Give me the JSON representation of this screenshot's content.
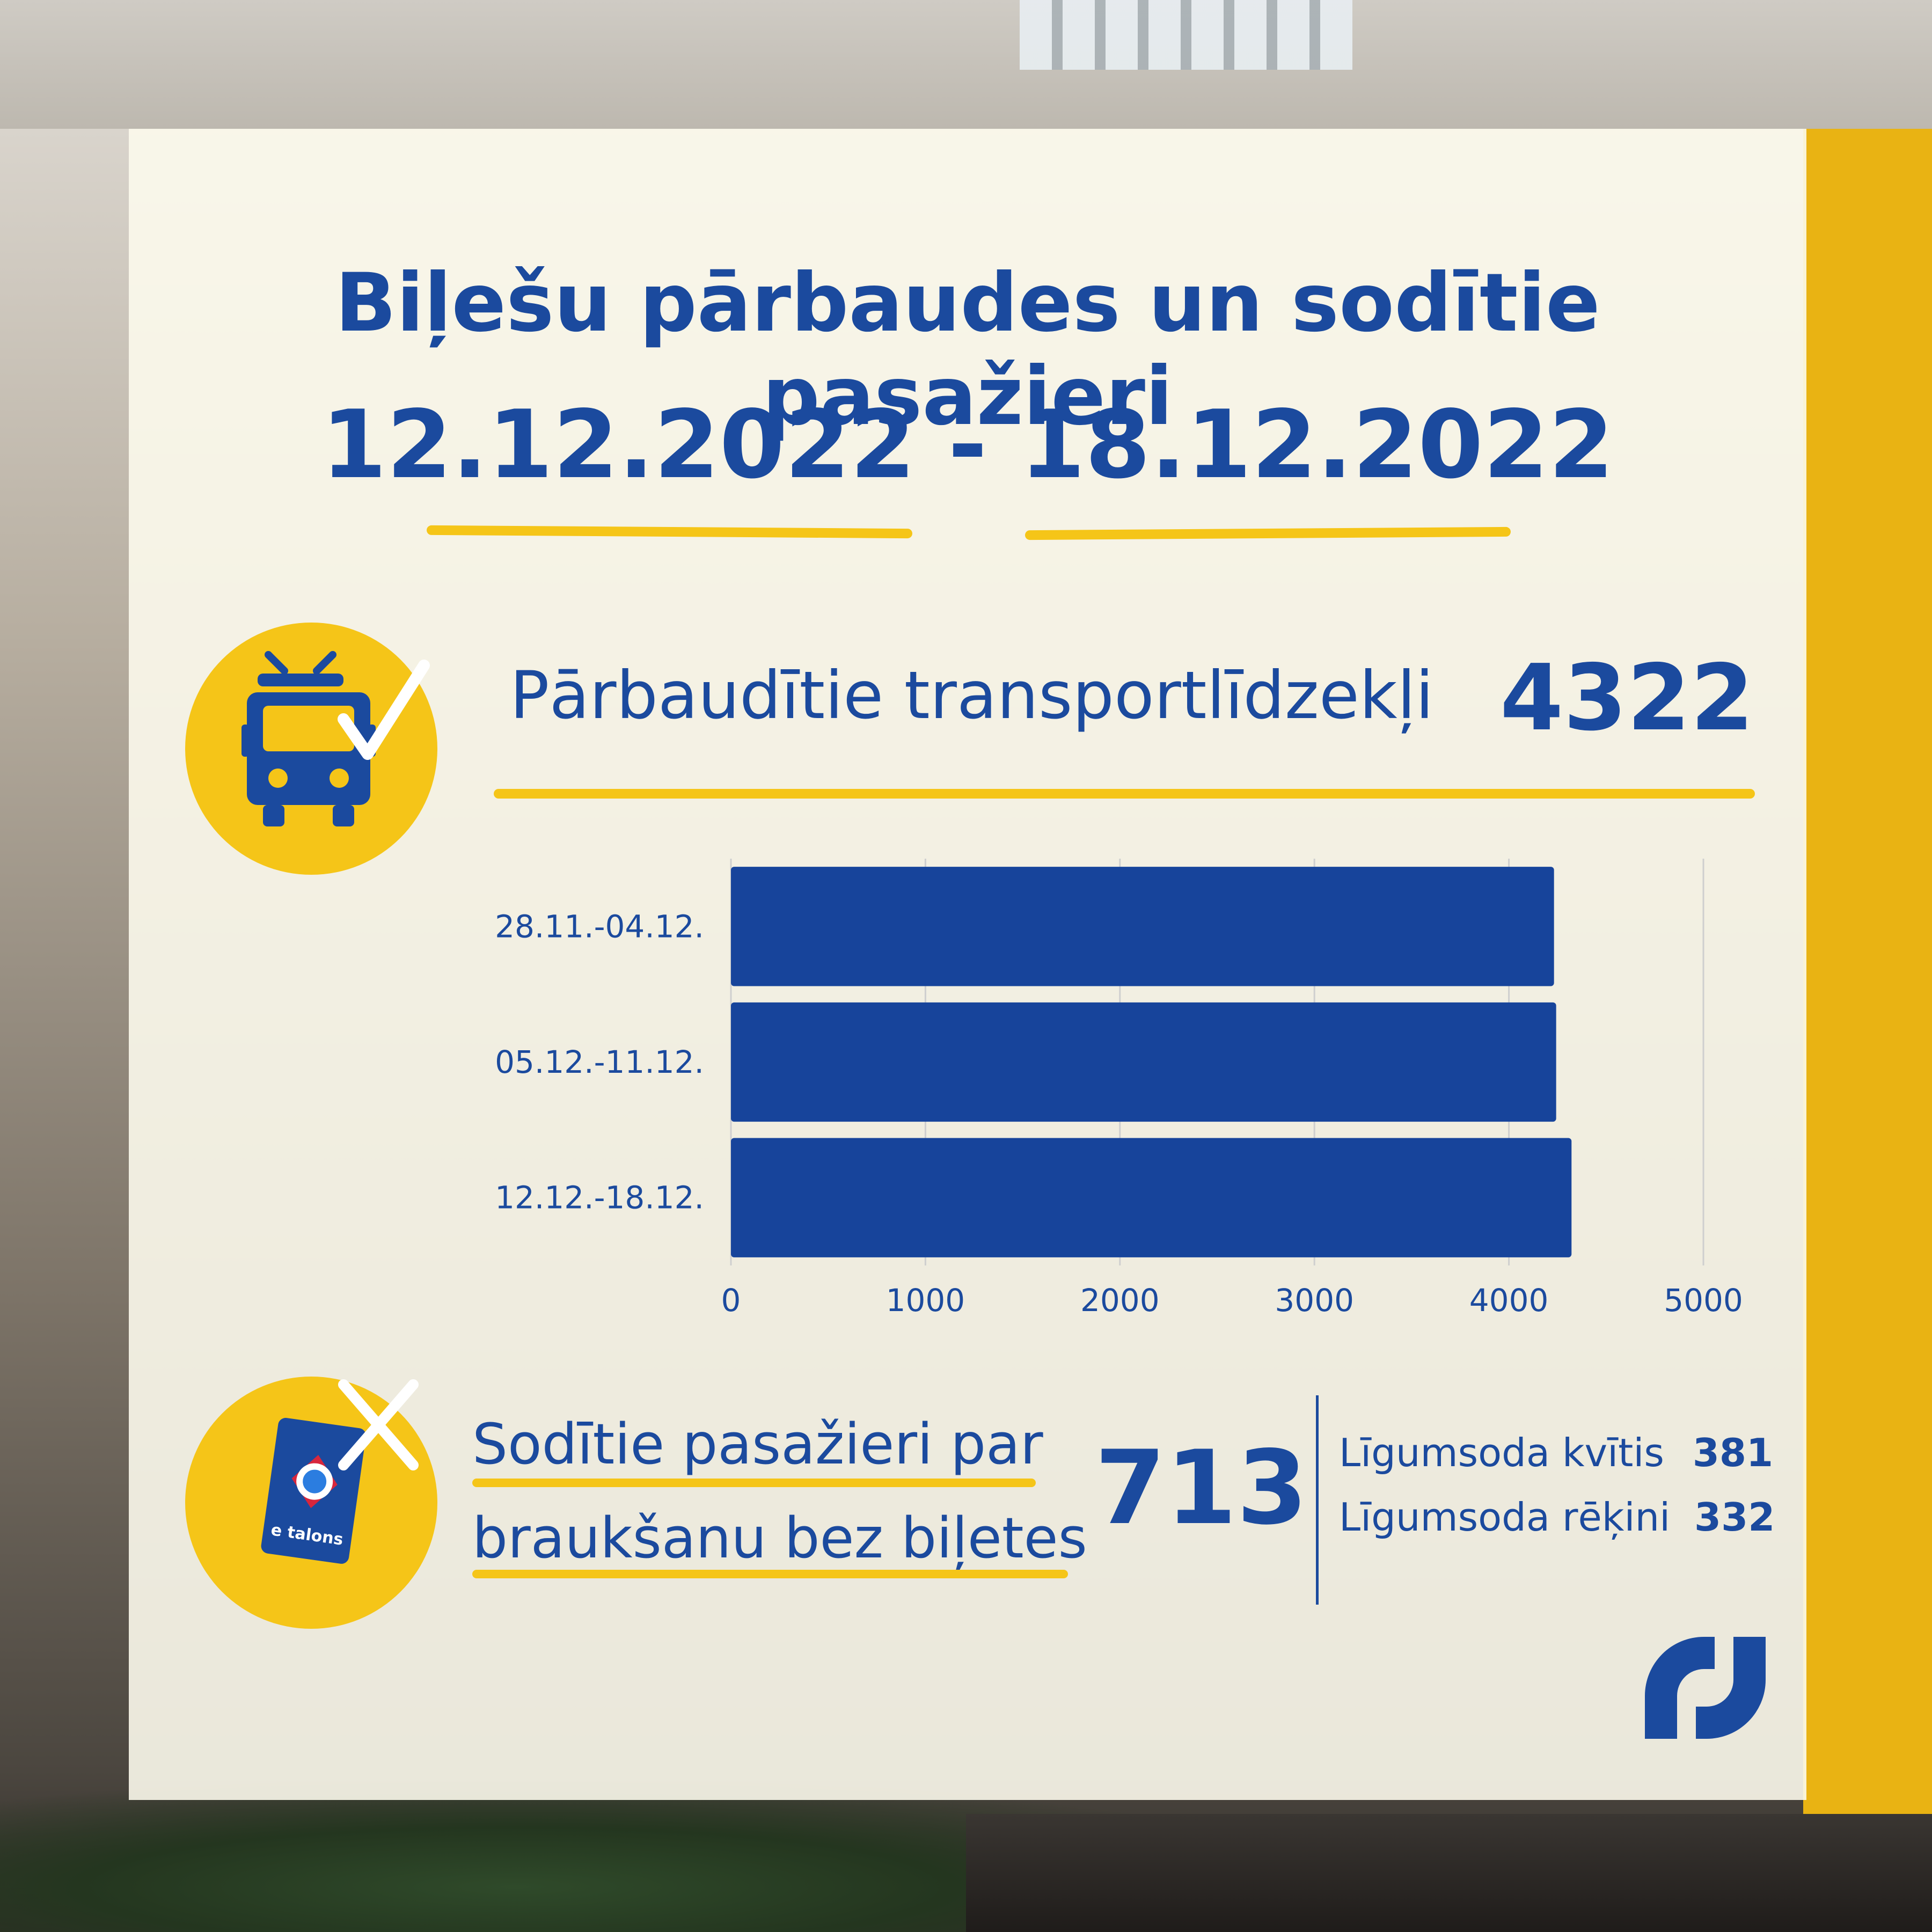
{
  "header": {
    "title": "Biļešu pārbaudes un sodītie pasažieri",
    "period": "12.12.2022 - 18.12.2022"
  },
  "vehicles": {
    "label": "Pārbaudītie transportlīdzekļi",
    "value": "4322",
    "icon": "trolleybus-check-icon"
  },
  "chart_data": {
    "type": "bar",
    "orientation": "horizontal",
    "categories": [
      "28.11.-04.12.",
      "05.12.-11.12.",
      "12.12.-18.12."
    ],
    "values": [
      4232,
      4243,
      4322
    ],
    "xlim": [
      0,
      5000
    ],
    "xticks": [
      "0",
      "1000",
      "2000",
      "3000",
      "4000",
      "5000"
    ],
    "grid": true,
    "bar_color": "#17449b"
  },
  "fined": {
    "label_line1": "Sodītie pasažieri par",
    "label_line2": "braukšanu bez biļetes",
    "value": "713",
    "icon": "etalons-card-cross-icon",
    "card_text": "e talons",
    "breakdown": [
      {
        "label": "Līgumsoda kvītis",
        "value": "381"
      },
      {
        "label": "Līgumsoda rēķini",
        "value": "332"
      }
    ]
  },
  "colors": {
    "primary": "#1b4a9e",
    "accent": "#f5c518"
  }
}
